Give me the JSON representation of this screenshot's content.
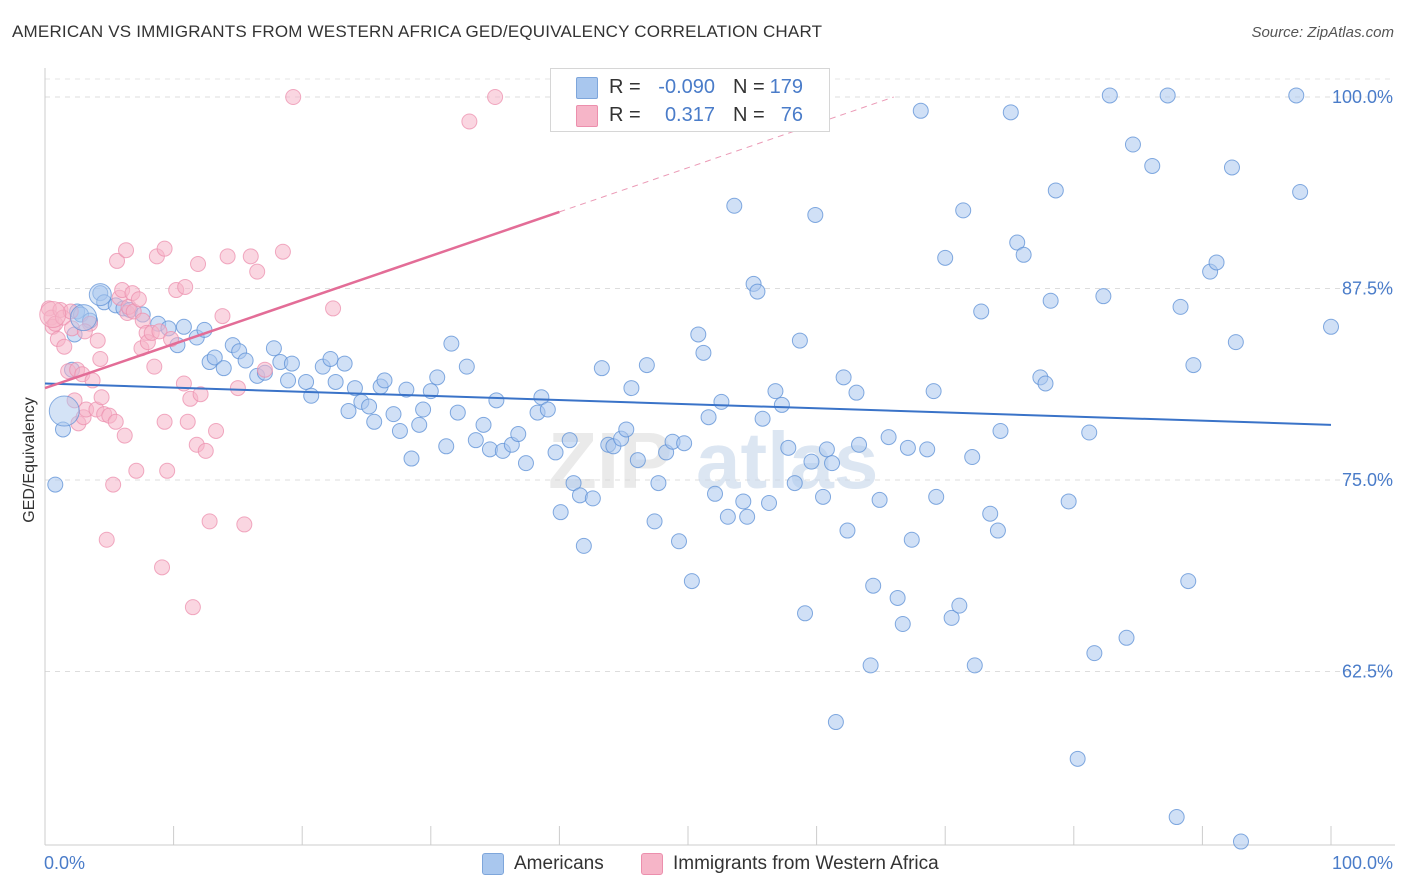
{
  "title": "AMERICAN VS IMMIGRANTS FROM WESTERN AFRICA GED/EQUIVALENCY CORRELATION CHART",
  "source": "Source: ZipAtlas.com",
  "watermark": {
    "zip": "ZIP",
    "atlas": "atlas"
  },
  "stats": [
    {
      "r_label": "R =",
      "r_value": "-0.090",
      "n_label": "N =",
      "n_value": "179",
      "color": "#a9c7ee"
    },
    {
      "r_label": "R =",
      "r_value": "0.317",
      "n_label": "N =",
      "n_value": "76",
      "color": "#f6b5c8"
    }
  ],
  "legend": [
    {
      "label": "Americans",
      "color": "#a9c7ee"
    },
    {
      "label": "Immigrants from Western Africa",
      "color": "#f6b5c8"
    }
  ],
  "chart_data": {
    "type": "scatter",
    "title": "AMERICAN VS IMMIGRANTS FROM WESTERN AFRICA GED/EQUIVALENCY CORRELATION CHART",
    "xlabel": "",
    "ylabel": "GED/Equivalency",
    "x_tick_labels": [
      "0.0%",
      "100.0%"
    ],
    "y_tick_labels": [
      "62.5%",
      "75.0%",
      "87.5%",
      "100.0%"
    ],
    "y_ticks": [
      62.5,
      75.0,
      87.5,
      100.0
    ],
    "xlim": [
      0,
      100
    ],
    "ylim": [
      50,
      102
    ],
    "grid": "horizontal dashed",
    "legend_position": "bottom",
    "series": [
      {
        "name": "Americans",
        "color": "#4a7cc9",
        "fill": "#a9c7ee",
        "trend": {
          "x": [
            0,
            100
          ],
          "y": [
            81.3,
            78.6
          ]
        },
        "points": [
          [
            0.8,
            74.7
          ],
          [
            1.4,
            78.3
          ],
          [
            2.1,
            82.2
          ],
          [
            2.3,
            84.5
          ],
          [
            2.5,
            86.0
          ],
          [
            2.8,
            85.8
          ],
          [
            3.5,
            85.4
          ],
          [
            4.3,
            87.2
          ],
          [
            4.6,
            86.6
          ],
          [
            5.5,
            86.4
          ],
          [
            6.1,
            86.2
          ],
          [
            6.6,
            86.1
          ],
          [
            7.6,
            85.8
          ],
          [
            8.8,
            85.2
          ],
          [
            9.6,
            84.9
          ],
          [
            10.3,
            83.8
          ],
          [
            10.8,
            85.0
          ],
          [
            11.8,
            84.3
          ],
          [
            12.4,
            84.8
          ],
          [
            12.8,
            82.7
          ],
          [
            13.2,
            83.0
          ],
          [
            13.9,
            82.3
          ],
          [
            14.6,
            83.8
          ],
          [
            15.1,
            83.4
          ],
          [
            15.6,
            82.8
          ],
          [
            16.5,
            81.8
          ],
          [
            17.1,
            82.0
          ],
          [
            17.8,
            83.6
          ],
          [
            18.3,
            82.7
          ],
          [
            18.9,
            81.5
          ],
          [
            19.2,
            82.6
          ],
          [
            20.3,
            81.4
          ],
          [
            20.7,
            80.5
          ],
          [
            21.6,
            82.4
          ],
          [
            22.2,
            82.9
          ],
          [
            22.6,
            81.4
          ],
          [
            23.3,
            82.6
          ],
          [
            23.6,
            79.5
          ],
          [
            24.1,
            81.0
          ],
          [
            24.6,
            80.1
          ],
          [
            25.2,
            79.8
          ],
          [
            25.6,
            78.8
          ],
          [
            26.1,
            81.1
          ],
          [
            26.4,
            81.5
          ],
          [
            27.1,
            79.3
          ],
          [
            27.6,
            78.2
          ],
          [
            28.1,
            80.9
          ],
          [
            28.5,
            76.4
          ],
          [
            29.1,
            78.6
          ],
          [
            29.4,
            79.6
          ],
          [
            30.0,
            80.8
          ],
          [
            30.5,
            81.7
          ],
          [
            31.2,
            77.2
          ],
          [
            31.6,
            83.9
          ],
          [
            32.1,
            79.4
          ],
          [
            32.8,
            82.4
          ],
          [
            33.5,
            77.6
          ],
          [
            34.1,
            78.6
          ],
          [
            34.6,
            77.0
          ],
          [
            35.1,
            80.2
          ],
          [
            35.6,
            76.9
          ],
          [
            36.3,
            77.3
          ],
          [
            36.8,
            78.0
          ],
          [
            37.4,
            76.1
          ],
          [
            38.3,
            79.4
          ],
          [
            38.6,
            80.4
          ],
          [
            39.1,
            79.6
          ],
          [
            39.7,
            76.8
          ],
          [
            40.1,
            72.9
          ],
          [
            40.8,
            77.6
          ],
          [
            41.1,
            74.8
          ],
          [
            41.6,
            74.0
          ],
          [
            41.9,
            70.7
          ],
          [
            42.6,
            73.8
          ],
          [
            43.3,
            82.3
          ],
          [
            43.8,
            77.3
          ],
          [
            44.2,
            77.2
          ],
          [
            44.8,
            77.7
          ],
          [
            45.2,
            78.3
          ],
          [
            45.6,
            81.0
          ],
          [
            46.1,
            76.3
          ],
          [
            46.8,
            82.5
          ],
          [
            47.4,
            72.3
          ],
          [
            47.7,
            74.8
          ],
          [
            48.3,
            76.8
          ],
          [
            48.8,
            77.5
          ],
          [
            49.3,
            71.0
          ],
          [
            49.7,
            77.4
          ],
          [
            50.3,
            68.4
          ],
          [
            50.8,
            84.5
          ],
          [
            51.2,
            83.3
          ],
          [
            51.6,
            79.1
          ],
          [
            52.1,
            74.1
          ],
          [
            52.6,
            80.1
          ],
          [
            53.1,
            72.6
          ],
          [
            53.6,
            92.9
          ],
          [
            54.3,
            73.6
          ],
          [
            54.6,
            72.6
          ],
          [
            55.1,
            87.8
          ],
          [
            55.4,
            87.3
          ],
          [
            55.8,
            79.0
          ],
          [
            56.3,
            73.5
          ],
          [
            56.8,
            80.8
          ],
          [
            57.3,
            79.9
          ],
          [
            57.8,
            77.1
          ],
          [
            58.3,
            74.8
          ],
          [
            58.7,
            84.1
          ],
          [
            59.1,
            66.3
          ],
          [
            59.6,
            76.2
          ],
          [
            59.9,
            92.3
          ],
          [
            60.5,
            73.9
          ],
          [
            60.8,
            77.0
          ],
          [
            61.2,
            76.1
          ],
          [
            61.5,
            59.2
          ],
          [
            62.1,
            81.7
          ],
          [
            62.4,
            71.7
          ],
          [
            63.1,
            80.7
          ],
          [
            63.3,
            77.3
          ],
          [
            64.2,
            62.9
          ],
          [
            64.4,
            68.1
          ],
          [
            64.9,
            73.7
          ],
          [
            65.6,
            77.8
          ],
          [
            66.3,
            67.3
          ],
          [
            66.7,
            65.6
          ],
          [
            67.1,
            77.1
          ],
          [
            67.4,
            71.1
          ],
          [
            68.1,
            99.1
          ],
          [
            68.6,
            77.0
          ],
          [
            69.1,
            80.8
          ],
          [
            69.3,
            73.9
          ],
          [
            70.0,
            89.5
          ],
          [
            70.5,
            66.0
          ],
          [
            71.1,
            66.8
          ],
          [
            71.4,
            92.6
          ],
          [
            72.1,
            76.5
          ],
          [
            72.3,
            62.9
          ],
          [
            72.8,
            86.0
          ],
          [
            73.5,
            72.8
          ],
          [
            74.1,
            71.7
          ],
          [
            74.3,
            78.2
          ],
          [
            75.1,
            99.0
          ],
          [
            75.6,
            90.5
          ],
          [
            76.1,
            89.7
          ],
          [
            77.4,
            81.7
          ],
          [
            77.8,
            81.3
          ],
          [
            78.2,
            86.7
          ],
          [
            78.6,
            93.9
          ],
          [
            79.6,
            73.6
          ],
          [
            80.3,
            56.8
          ],
          [
            81.2,
            78.1
          ],
          [
            81.6,
            63.7
          ],
          [
            82.3,
            87.0
          ],
          [
            82.8,
            100.1
          ],
          [
            84.1,
            64.7
          ],
          [
            84.6,
            96.9
          ],
          [
            86.1,
            95.5
          ],
          [
            87.3,
            100.1
          ],
          [
            88.0,
            53.0
          ],
          [
            88.3,
            86.3
          ],
          [
            88.9,
            68.4
          ],
          [
            89.3,
            82.5
          ],
          [
            90.6,
            88.6
          ],
          [
            91.1,
            89.2
          ],
          [
            92.3,
            95.4
          ],
          [
            92.6,
            84.0
          ],
          [
            93.0,
            51.4
          ],
          [
            97.3,
            100.1
          ],
          [
            97.6,
            93.8
          ],
          [
            100.0,
            85.0
          ]
        ]
      },
      {
        "name": "Immigrants from Western Africa",
        "color": "#e8729a",
        "fill": "#f6b5c8",
        "trend": {
          "x": [
            0,
            40,
            66
          ],
          "y": [
            81.0,
            92.5,
            100
          ]
        },
        "points": [
          [
            0.3,
            86.2
          ],
          [
            0.5,
            85.6
          ],
          [
            0.6,
            85.0
          ],
          [
            0.8,
            85.2
          ],
          [
            1.0,
            84.2
          ],
          [
            1.2,
            86.1
          ],
          [
            1.4,
            85.6
          ],
          [
            1.5,
            83.7
          ],
          [
            1.8,
            82.1
          ],
          [
            2.0,
            86.0
          ],
          [
            2.1,
            84.9
          ],
          [
            2.3,
            80.2
          ],
          [
            2.5,
            82.2
          ],
          [
            2.6,
            78.7
          ],
          [
            2.9,
            81.9
          ],
          [
            3.0,
            79.1
          ],
          [
            3.2,
            79.6
          ],
          [
            3.5,
            85.2
          ],
          [
            3.7,
            81.5
          ],
          [
            4.0,
            79.6
          ],
          [
            4.1,
            84.1
          ],
          [
            4.4,
            80.4
          ],
          [
            4.6,
            79.3
          ],
          [
            4.8,
            71.1
          ],
          [
            5.0,
            79.2
          ],
          [
            5.3,
            74.7
          ],
          [
            5.5,
            78.8
          ],
          [
            5.6,
            89.3
          ],
          [
            5.8,
            86.9
          ],
          [
            6.0,
            87.4
          ],
          [
            6.2,
            77.9
          ],
          [
            6.4,
            85.9
          ],
          [
            6.5,
            86.3
          ],
          [
            6.8,
            87.2
          ],
          [
            6.9,
            86.0
          ],
          [
            7.1,
            75.6
          ],
          [
            7.3,
            86.8
          ],
          [
            7.5,
            83.6
          ],
          [
            7.6,
            85.4
          ],
          [
            7.9,
            84.6
          ],
          [
            8.0,
            84.0
          ],
          [
            8.3,
            84.6
          ],
          [
            8.5,
            82.4
          ],
          [
            8.7,
            89.6
          ],
          [
            8.9,
            84.7
          ],
          [
            9.1,
            69.3
          ],
          [
            9.3,
            78.8
          ],
          [
            9.5,
            75.6
          ],
          [
            9.8,
            84.2
          ],
          [
            10.2,
            87.4
          ],
          [
            10.8,
            81.3
          ],
          [
            11.1,
            78.8
          ],
          [
            11.3,
            80.3
          ],
          [
            11.5,
            66.7
          ],
          [
            11.8,
            77.3
          ],
          [
            12.1,
            80.6
          ],
          [
            12.5,
            76.9
          ],
          [
            12.8,
            72.3
          ],
          [
            13.3,
            78.2
          ],
          [
            13.8,
            85.7
          ],
          [
            14.2,
            89.6
          ],
          [
            15.0,
            81.0
          ],
          [
            15.5,
            72.1
          ],
          [
            16.0,
            89.6
          ],
          [
            16.5,
            88.6
          ],
          [
            17.1,
            82.2
          ],
          [
            18.5,
            89.9
          ],
          [
            19.3,
            100.0
          ],
          [
            22.4,
            86.2
          ],
          [
            33.0,
            98.4
          ],
          [
            35.0,
            100.0
          ],
          [
            9.3,
            90.1
          ],
          [
            6.3,
            90.0
          ],
          [
            10.9,
            87.6
          ],
          [
            11.9,
            89.1
          ],
          [
            4.3,
            82.9
          ],
          [
            3.1,
            84.7
          ]
        ]
      }
    ]
  }
}
